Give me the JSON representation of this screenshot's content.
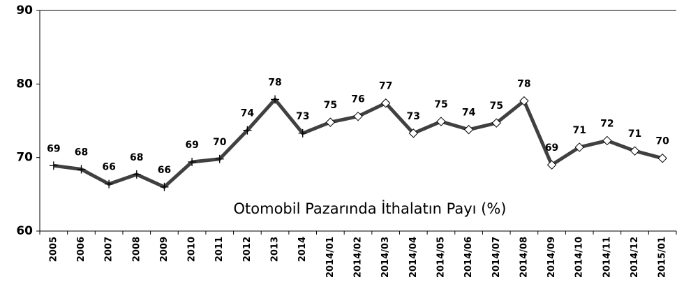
{
  "chart_data": {
    "type": "line",
    "annotation": "Otomobil Pazarında İthalatın Payı (%)",
    "categories": [
      "2005",
      "2006",
      "2007",
      "2008",
      "2009",
      "2010",
      "2011",
      "2012",
      "2013",
      "2014",
      "2014/01",
      "2014/02",
      "2014/03",
      "2014/04",
      "2014/05",
      "2014/06",
      "2014/07",
      "2014/08",
      "2014/09",
      "2014/10",
      "2014/11",
      "2014/12",
      "2015/01"
    ],
    "series": [
      {
        "color": "#404040",
        "values": [
          68.9,
          68.4,
          66.4,
          67.7,
          66.0,
          69.4,
          69.8,
          73.7,
          77.9,
          73.3,
          74.8,
          75.6,
          77.4,
          73.3,
          74.9,
          73.8,
          74.7,
          77.7,
          69.0,
          71.4,
          72.3,
          70.9,
          69.9
        ],
        "value_labels": [
          "69",
          "68",
          "66",
          "68",
          "66",
          "69",
          "70",
          "74",
          "78",
          "73",
          "75",
          "76",
          "77",
          "73",
          "75",
          "74",
          "75",
          "78",
          "69",
          "71",
          "72",
          "71",
          "70"
        ],
        "markers": [
          "plus",
          "plus",
          "plus",
          "plus",
          "plus",
          "plus",
          "plus",
          "plus",
          "plus",
          "plus",
          "diamond",
          "diamond",
          "diamond",
          "diamond",
          "diamond",
          "diamond",
          "diamond",
          "diamond",
          "diamond",
          "diamond",
          "diamond",
          "diamond",
          "diamond"
        ]
      }
    ],
    "ylim": [
      60,
      90
    ],
    "yticks": [
      60,
      70,
      80,
      90
    ]
  }
}
